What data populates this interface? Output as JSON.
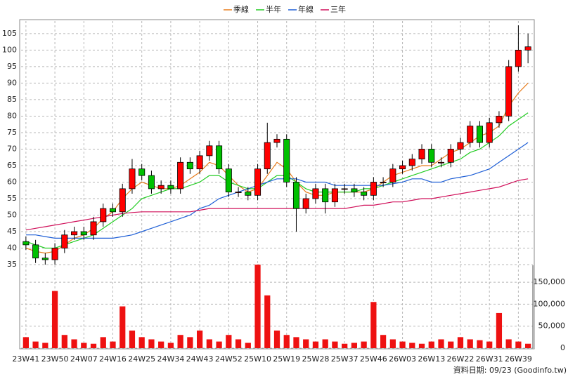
{
  "chart_data": {
    "type": "candlestick",
    "source": "資料日期: 09/23  (Goodinfo.tw)",
    "categories": [
      "23W41",
      null,
      null,
      "23W50",
      null,
      null,
      "24W07",
      null,
      null,
      "24W16",
      null,
      null,
      "24W25",
      null,
      null,
      "24W34",
      null,
      null,
      "24W43",
      null,
      null,
      "24W52",
      null,
      null,
      "25W10",
      null,
      null,
      "25W19",
      null,
      null,
      "25W28",
      null,
      null,
      "25W37",
      null,
      null,
      "25W46",
      null,
      null,
      "26W03",
      null,
      null,
      "26W13",
      null,
      null,
      "26W22",
      null,
      null,
      "26W31",
      null,
      null,
      "26W39",
      null
    ],
    "candles": {
      "up_color": "#ff0000",
      "down_color": "#00c000",
      "open": [
        42,
        41,
        37,
        36.5,
        40,
        44,
        45,
        44,
        48,
        52,
        51,
        58,
        64,
        62,
        58,
        59,
        58,
        66,
        64,
        68,
        71,
        64,
        57,
        57,
        56,
        64,
        72,
        73,
        60,
        52,
        55,
        58,
        54,
        58,
        58,
        57,
        56,
        60,
        60,
        64,
        65,
        67,
        70,
        66,
        66,
        70,
        72,
        77,
        72,
        78,
        80,
        95,
        100
      ],
      "high": [
        43.5,
        42.5,
        38.5,
        41.5,
        45.5,
        46.5,
        46.5,
        49.5,
        53.5,
        53.5,
        59.5,
        67,
        65.5,
        63.5,
        60.5,
        60.5,
        67.5,
        67.5,
        69.5,
        72.5,
        72.5,
        65.5,
        58.5,
        58.5,
        65.5,
        78,
        74.5,
        74.5,
        61.5,
        56.5,
        59.5,
        59.5,
        59.5,
        59.5,
        59.5,
        58.5,
        61.5,
        61.5,
        65.5,
        66.5,
        68.5,
        71.5,
        71.5,
        67.5,
        71.5,
        73.5,
        78.5,
        78.5,
        79.5,
        81.5,
        97,
        107.5,
        105
      ],
      "low": [
        39.5,
        35.5,
        35,
        35,
        38.5,
        42.5,
        42.5,
        42.5,
        46.5,
        49.5,
        49.5,
        56.5,
        60.5,
        56.5,
        56.5,
        56.5,
        56.5,
        62.5,
        62.5,
        66.5,
        62.5,
        55.5,
        55.5,
        54.5,
        54.5,
        62.5,
        70.5,
        58.5,
        45,
        50.5,
        53.5,
        50.5,
        52.5,
        56.5,
        55.5,
        54.5,
        54.5,
        58.5,
        58.5,
        62.5,
        63.5,
        65.5,
        64.5,
        64.5,
        64.5,
        68.5,
        70.5,
        70.5,
        70.5,
        76.5,
        78.5,
        93.5,
        96
      ],
      "close": [
        41,
        37,
        36.5,
        40,
        44,
        45,
        44,
        48,
        52,
        51,
        58,
        64,
        62,
        58,
        59,
        58,
        66,
        64,
        68,
        71,
        64,
        57,
        57,
        56,
        64,
        72,
        73,
        60,
        52,
        55,
        58,
        54,
        58,
        58,
        57,
        56,
        60,
        60,
        64,
        65,
        67,
        70,
        66,
        66,
        70,
        72,
        77,
        72,
        78,
        80,
        95,
        100,
        101
      ]
    },
    "series": [
      {
        "name": "季線",
        "color": "#e87d1e",
        "values": [
          40,
          39,
          38.5,
          39,
          41,
          43,
          44,
          46,
          49,
          51,
          55,
          58,
          60,
          59,
          58,
          58,
          59,
          61,
          63,
          66,
          65,
          62,
          59,
          57,
          58,
          62,
          66,
          64,
          60,
          57,
          56,
          56,
          57,
          57,
          57,
          57,
          58,
          60,
          62,
          63,
          64,
          65,
          65,
          67,
          69,
          70,
          72,
          74,
          75,
          77,
          83,
          87,
          90
        ]
      },
      {
        "name": "半年",
        "color": "#22cc22",
        "values": [
          42,
          41,
          40,
          40,
          41,
          42,
          43,
          44,
          46,
          48,
          50,
          52,
          55,
          56,
          57,
          58,
          58,
          59,
          60,
          62,
          62,
          60,
          59,
          58,
          58,
          60,
          62,
          62,
          60,
          58,
          57,
          57,
          57,
          57,
          57,
          58,
          58,
          59,
          60,
          61,
          62,
          63,
          64,
          65,
          66,
          67,
          69,
          70,
          72,
          74,
          77,
          79,
          81
        ]
      },
      {
        "name": "年線",
        "color": "#1f5fd6",
        "values": [
          44,
          44,
          43.5,
          43,
          43,
          43,
          43,
          43,
          43,
          43,
          43.5,
          44,
          45,
          46,
          47,
          48,
          49,
          50,
          52,
          53,
          55,
          56,
          57,
          58,
          59,
          60,
          61,
          61,
          61,
          60,
          60,
          60,
          59,
          59,
          59,
          59,
          59,
          59,
          59.5,
          60,
          61,
          61,
          60,
          60,
          61,
          61.5,
          62,
          63,
          64,
          66,
          68,
          70,
          72
        ]
      },
      {
        "name": "三年",
        "color": "#d0105a",
        "values": [
          45.5,
          46,
          46.5,
          47,
          47.5,
          48,
          48.5,
          49,
          49.5,
          50,
          50.5,
          50.8,
          51,
          51,
          51,
          51,
          51,
          51,
          51.5,
          52,
          52,
          52,
          52,
          52,
          52,
          52,
          52,
          52,
          52,
          52,
          52,
          52,
          52,
          52,
          52.5,
          53,
          53,
          53.5,
          54,
          54,
          54.5,
          55,
          55,
          55.5,
          56,
          56.5,
          57,
          57.5,
          58,
          58.5,
          59.5,
          60.5,
          61
        ]
      }
    ],
    "ylim": [
      34.8,
      108.8
    ],
    "yticks": [
      35,
      40,
      45,
      50,
      55,
      60,
      65,
      70,
      75,
      80,
      85,
      90,
      95,
      100,
      105
    ],
    "volume": {
      "color": "#ee1111",
      "values": [
        25000,
        15000,
        12000,
        130000,
        30000,
        20000,
        12000,
        10000,
        25000,
        15000,
        95000,
        40000,
        25000,
        20000,
        15000,
        12000,
        30000,
        25000,
        40000,
        20000,
        15000,
        30000,
        20000,
        12000,
        190000,
        120000,
        40000,
        30000,
        25000,
        20000,
        15000,
        20000,
        15000,
        10000,
        12000,
        15000,
        105000,
        30000,
        20000,
        15000,
        12000,
        10000,
        15000,
        20000,
        15000,
        25000,
        20000,
        18000,
        15000,
        80000,
        20000,
        15000,
        10000
      ],
      "ylim": [
        0,
        188500
      ],
      "yticks": [
        0,
        {
          "value": 50000,
          "label": "50,000"
        },
        {
          "value": 100000,
          "label": "100,000"
        },
        {
          "value": 150000,
          "label": "150,000"
        }
      ]
    },
    "grid": true
  }
}
